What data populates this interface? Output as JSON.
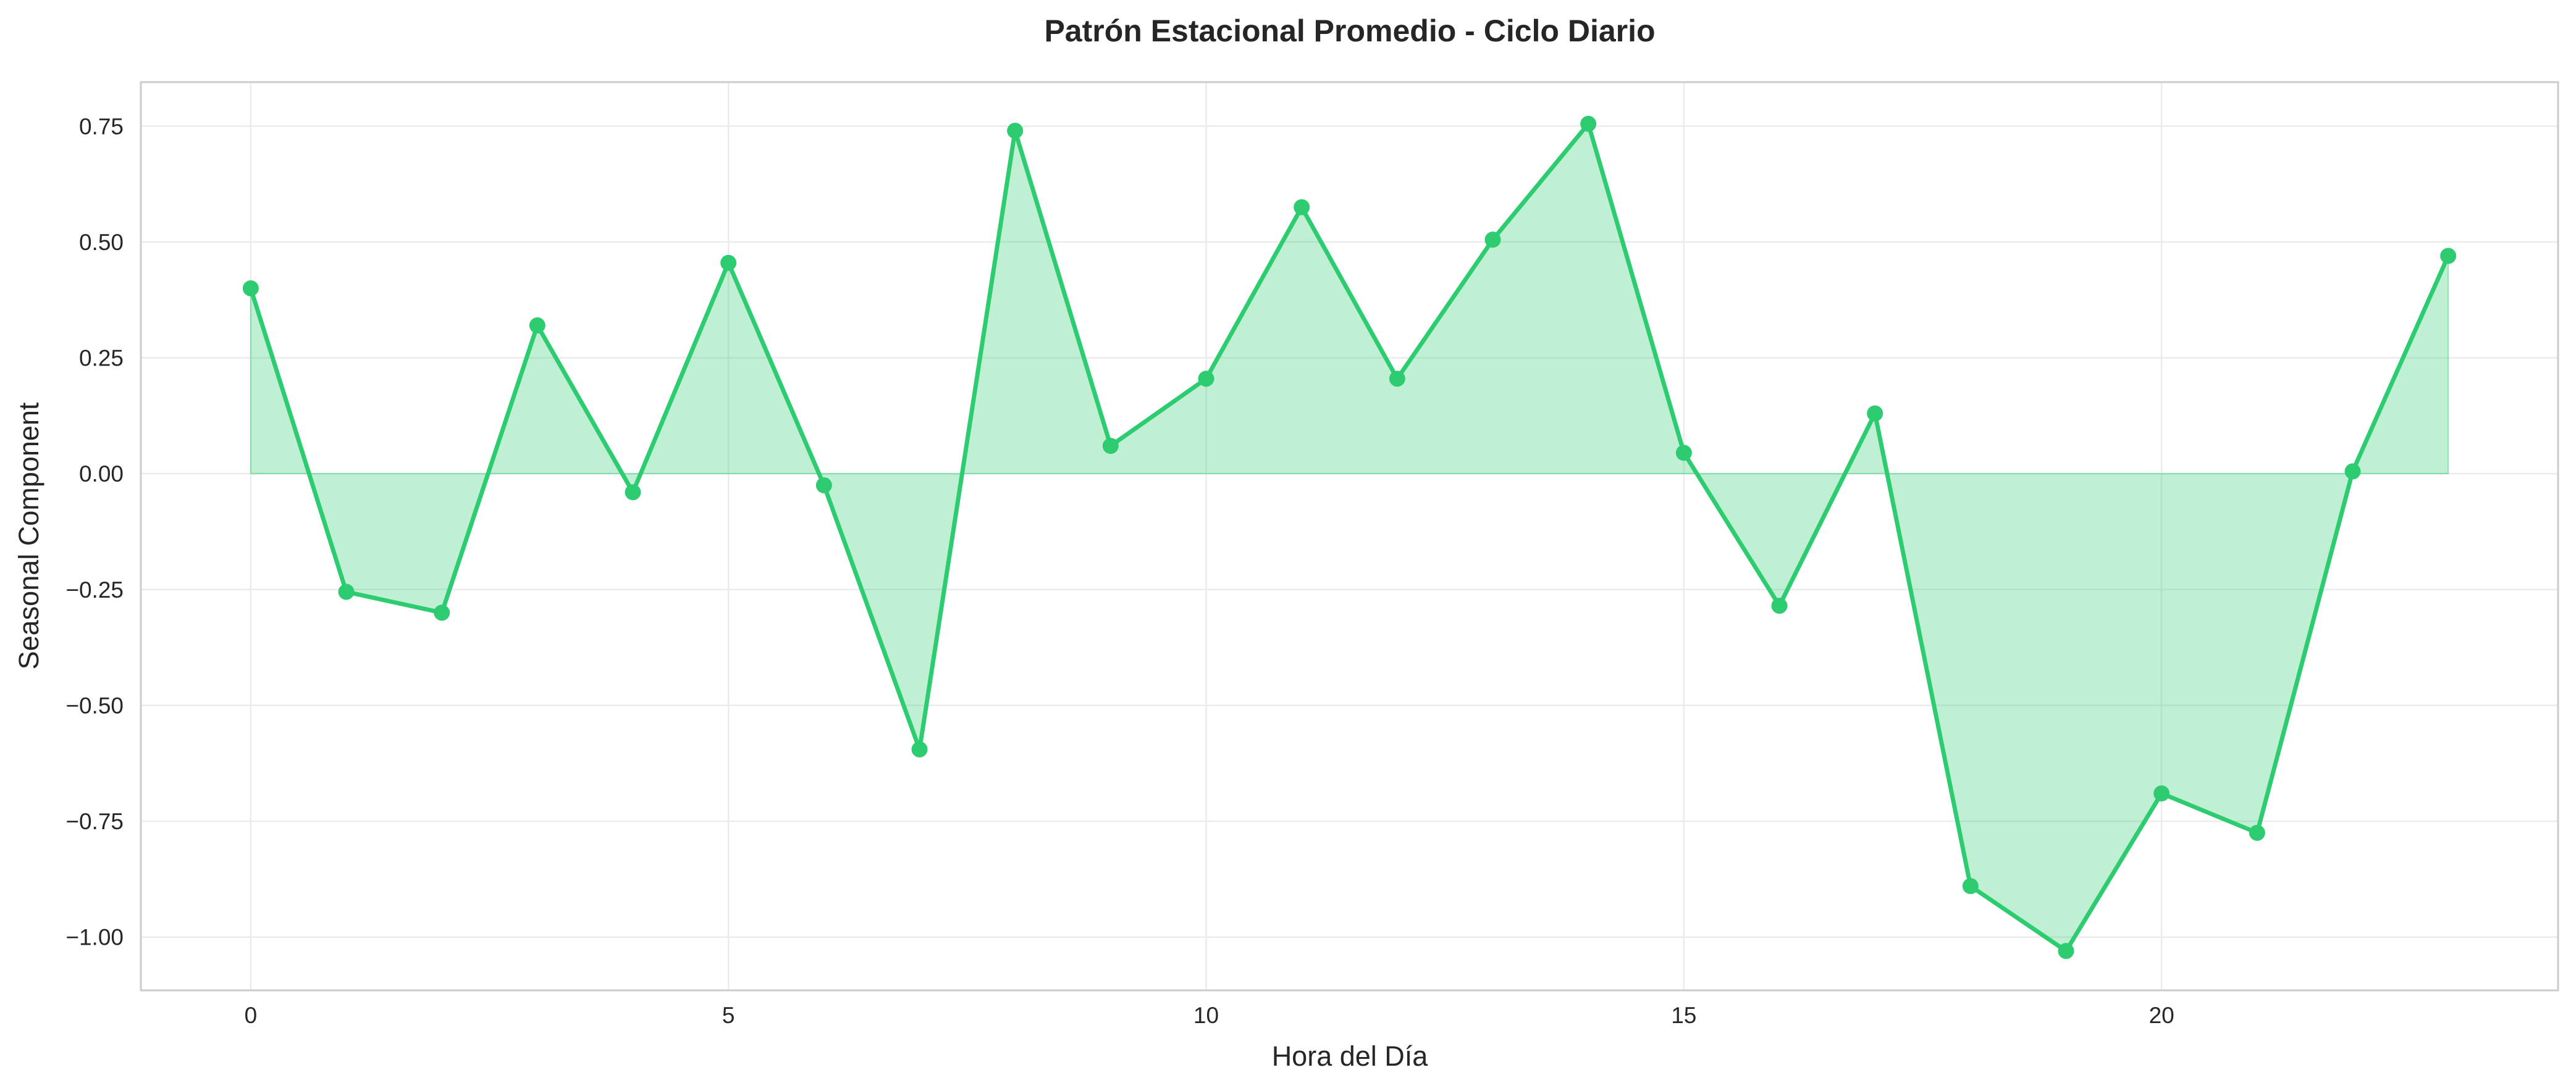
{
  "chart_data": {
    "type": "area",
    "title": "Patrón Estacional Promedio - Ciclo Diario",
    "xlabel": "Hora del Día",
    "ylabel": "Seasonal Component",
    "x": [
      0,
      1,
      2,
      3,
      4,
      5,
      6,
      7,
      8,
      9,
      10,
      11,
      12,
      13,
      14,
      15,
      16,
      17,
      18,
      19,
      20,
      21,
      22,
      23
    ],
    "series": [
      {
        "values": [
          0.4,
          -0.255,
          -0.3,
          0.32,
          -0.04,
          0.455,
          -0.025,
          -0.595,
          0.74,
          0.06,
          0.205,
          0.575,
          0.205,
          0.505,
          0.755,
          0.045,
          -0.285,
          0.13,
          -0.89,
          -1.03,
          -0.69,
          -0.775,
          0.005,
          0.47
        ],
        "color": "#2ecc71"
      }
    ],
    "fill_baseline": 0,
    "xlim": [
      -1.15,
      24.15
    ],
    "ylim": [
      -1.115,
      0.845
    ],
    "xticks": [
      0,
      5,
      10,
      15,
      20
    ],
    "yticks": [
      -1.0,
      -0.75,
      -0.5,
      -0.25,
      0.0,
      0.25,
      0.5,
      0.75
    ],
    "ytick_labels": [
      "−1.00",
      "−0.75",
      "−0.50",
      "−0.25",
      "0.00",
      "0.25",
      "0.50",
      "0.75"
    ],
    "grid": true,
    "colors": {
      "line": "#2ecc71",
      "fill": "#2ecc71",
      "grid": "#ebebeb",
      "frame": "#cccccc",
      "text": "#262626"
    }
  }
}
